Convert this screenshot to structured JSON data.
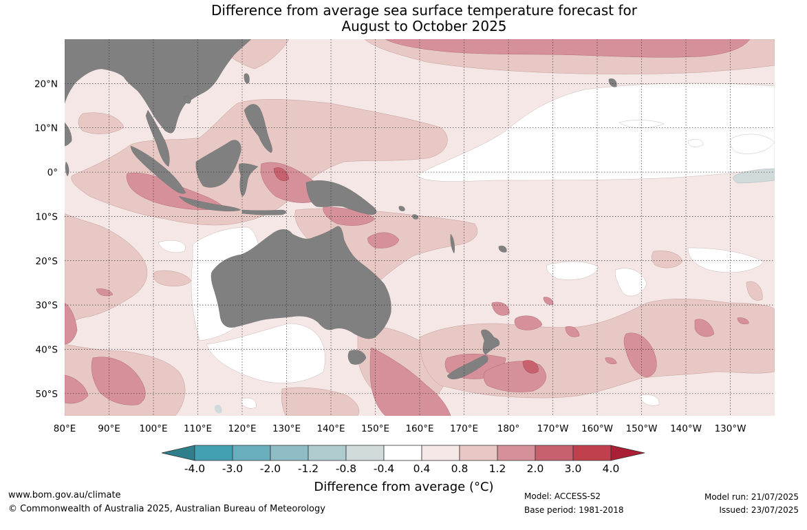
{
  "title": {
    "line1": "Difference from average sea surface temperature forecast for",
    "line2": "August to October 2025"
  },
  "map": {
    "lon_labels": [
      "80°E",
      "90°E",
      "100°E",
      "110°E",
      "120°E",
      "130°E",
      "140°E",
      "150°E",
      "160°E",
      "170°E",
      "180°",
      "170°W",
      "160°W",
      "150°W",
      "140°W",
      "130°W"
    ],
    "lat_labels": [
      "20°N",
      "10°N",
      "0°",
      "10°S",
      "20°S",
      "30°S",
      "40°S",
      "50°S"
    ],
    "extent": {
      "lon_min": 80,
      "lon_max": 240,
      "lat_min": -55,
      "lat_max": 30
    },
    "land_color": "#808080"
  },
  "colorbar": {
    "title": "Difference from average (°C)",
    "tick_labels": [
      "-4.0",
      "-3.0",
      "-2.0",
      "-1.2",
      "-0.8",
      "-0.4",
      "0.4",
      "0.8",
      "1.2",
      "2.0",
      "3.0",
      "4.0"
    ],
    "colors": [
      "#2e7f8b",
      "#43a0b2",
      "#68aebc",
      "#8ebcc4",
      "#b0cbce",
      "#d1dadb",
      "#ffffff",
      "#f4e7e6",
      "#e8c8c4",
      "#d6909a",
      "#c7616e",
      "#c0404e",
      "#a81f36"
    ]
  },
  "footer": {
    "website": "www.bom.gov.au/climate",
    "copyright": "© Commonwealth of Australia 2025, Australian Bureau of Meteorology",
    "model": "Model: ACCESS-S2",
    "base_period": "Base period: 1981-2018",
    "model_run": "Model run: 21/07/2025",
    "issued": "Issued: 23/07/2025"
  }
}
